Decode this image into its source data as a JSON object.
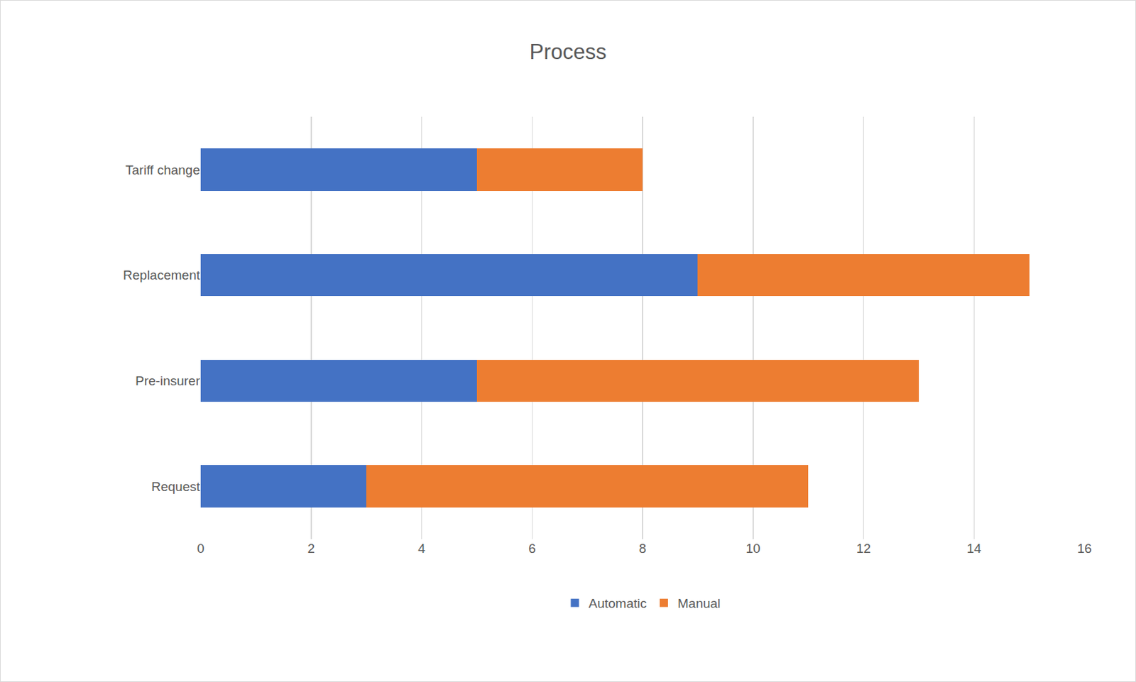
{
  "chart_data": {
    "type": "bar",
    "title": "Process",
    "orientation": "horizontal",
    "stacked": true,
    "categories": [
      "Request",
      "Pre-insurer",
      "Replacement",
      "Tariff change"
    ],
    "series": [
      {
        "name": "Automatic",
        "color": "#4472c4",
        "values": [
          3,
          5,
          9,
          5
        ]
      },
      {
        "name": "Manual",
        "color": "#ed7d31",
        "values": [
          8,
          8,
          6,
          3
        ]
      }
    ],
    "xlim": [
      0,
      16
    ],
    "xticks": [
      0,
      2,
      4,
      6,
      8,
      10,
      12,
      14,
      16
    ],
    "grid": true,
    "legend": "bottom"
  }
}
